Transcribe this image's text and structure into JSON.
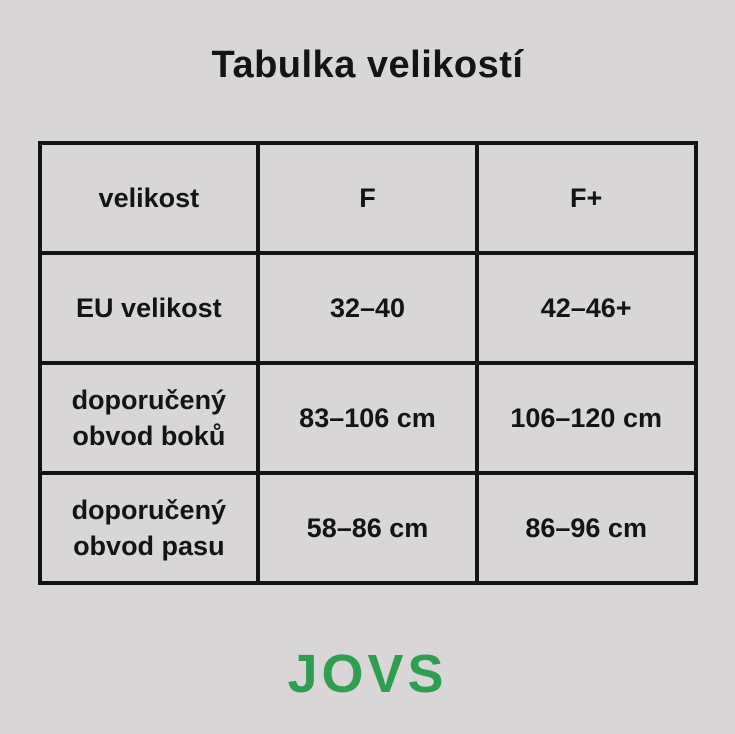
{
  "title": "Tabulka velikostí",
  "table": {
    "header": [
      "velikost",
      "F",
      "F+"
    ],
    "rows": [
      [
        "EU velikost",
        "32–40",
        "42–46+"
      ],
      [
        "doporučený\nobvod boků",
        "83–106 cm",
        "106–120 cm"
      ],
      [
        "doporučený\nobvod pasu",
        "58–86 cm",
        "86–96 cm"
      ]
    ]
  },
  "logo": "JOVS",
  "colors": {
    "background": "#d8d6d7",
    "text": "#141414",
    "border": "#141414",
    "logo_green": "#2f9e50"
  }
}
